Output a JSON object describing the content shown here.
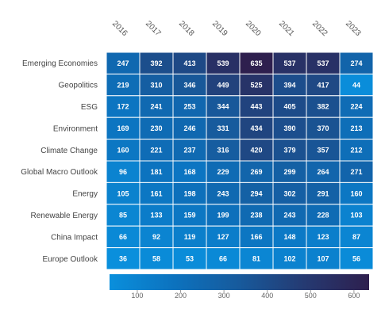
{
  "chart_data": {
    "type": "heatmap",
    "x": [
      "2016",
      "2017",
      "2018",
      "2019",
      "2020",
      "2021",
      "2022",
      "2023"
    ],
    "y": [
      "Emerging Economies",
      "Geopolitics",
      "ESG",
      "Environment",
      "Climate Change",
      "Global Macro Outlook",
      "Energy",
      "Renewable Energy",
      "China Impact",
      "Europe Outlook"
    ],
    "values": [
      [
        247,
        392,
        413,
        539,
        635,
        537,
        537,
        274
      ],
      [
        219,
        310,
        346,
        449,
        525,
        394,
        417,
        44
      ],
      [
        172,
        241,
        253,
        344,
        443,
        405,
        382,
        224
      ],
      [
        169,
        230,
        246,
        331,
        434,
        390,
        370,
        213
      ],
      [
        160,
        221,
        237,
        316,
        420,
        379,
        357,
        212
      ],
      [
        96,
        181,
        168,
        229,
        269,
        299,
        264,
        271
      ],
      [
        105,
        161,
        198,
        243,
        294,
        302,
        291,
        160
      ],
      [
        85,
        133,
        159,
        199,
        238,
        243,
        228,
        103
      ],
      [
        66,
        92,
        119,
        127,
        166,
        148,
        123,
        87
      ],
      [
        36,
        58,
        53,
        66,
        81,
        102,
        107,
        56
      ]
    ],
    "colorscale": {
      "min": 36,
      "max": 635,
      "colors": [
        "#0a8fdc",
        "#0c72be",
        "#175a9c",
        "#253a72",
        "#2e1f4e"
      ],
      "ticks": [
        100,
        200,
        300,
        400,
        500,
        600
      ]
    },
    "title": "",
    "xlabel": "",
    "ylabel": "",
    "legend": "bottom colorbar",
    "grid": false
  }
}
